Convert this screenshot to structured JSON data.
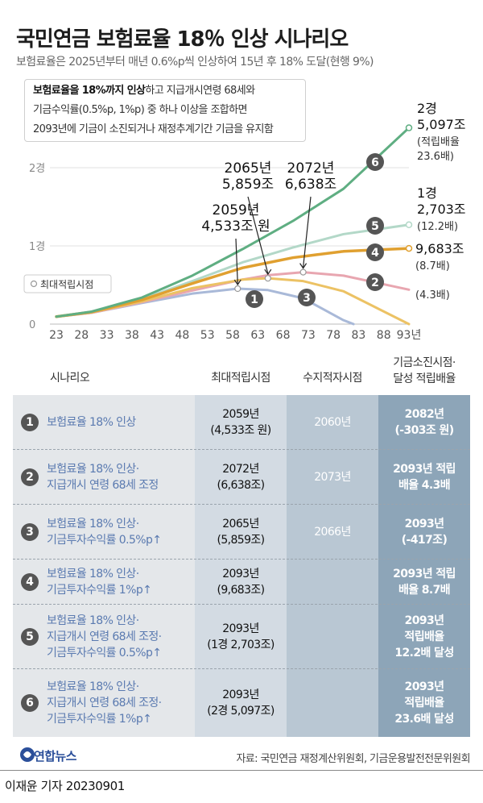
{
  "title": "국민연금 보험료율 18％ 인상 시나리오",
  "subtitle": "보험료율은 2025년부터 매년 0.6%p씩 인상하여 15년 후 18% 도달(현행 9%)",
  "note": {
    "bold": "보험료율을 18%까지 인상",
    "line1_rest": "하고 지급개시연령 68세와",
    "line2": "기금수익률(0.5%p, 1%p) 중 하나 이상을 조합하면",
    "line3": "2093년에 기금이 소진되거나 재정추계기간 기금을 유지함"
  },
  "chart_data": {
    "type": "line",
    "x_ticks": [
      "23",
      "28",
      "33",
      "38",
      "43",
      "48",
      "53",
      "58",
      "63",
      "68",
      "73",
      "78",
      "83",
      "88",
      "93년"
    ],
    "x_range": [
      2023,
      2093
    ],
    "y_ticks": [
      "0",
      "1경",
      "2경"
    ],
    "y_range_jo": [
      0,
      24000
    ],
    "legend_label": "최대적립시점",
    "series": [
      {
        "id": "1",
        "color": "#a9b9d8",
        "x": [
          2023,
          2030,
          2040,
          2050,
          2059,
          2065,
          2072,
          2080,
          2082
        ],
        "y": [
          950,
          1450,
          2700,
          3900,
          4533,
          4350,
          3300,
          500,
          0
        ]
      },
      {
        "id": "2",
        "color": "#e8a6b0",
        "x": [
          2023,
          2030,
          2040,
          2050,
          2060,
          2065,
          2072,
          2080,
          2093
        ],
        "y": [
          950,
          1450,
          2800,
          4300,
          5700,
          6250,
          6638,
          6200,
          4400
        ]
      },
      {
        "id": "3",
        "color": "#ecc264",
        "x": [
          2023,
          2030,
          2040,
          2050,
          2060,
          2065,
          2072,
          2080,
          2093
        ],
        "y": [
          950,
          1500,
          2900,
          4600,
          5700,
          5859,
          5500,
          4200,
          0
        ]
      },
      {
        "id": "4",
        "color": "#e0a030",
        "x": [
          2023,
          2030,
          2040,
          2050,
          2060,
          2070,
          2080,
          2093
        ],
        "y": [
          950,
          1550,
          3100,
          5200,
          7200,
          8500,
          9300,
          9683
        ]
      },
      {
        "id": "5",
        "color": "#b3d8c8",
        "x": [
          2023,
          2030,
          2040,
          2050,
          2060,
          2070,
          2080,
          2093
        ],
        "y": [
          950,
          1550,
          3200,
          5500,
          7900,
          9800,
          11500,
          12703
        ]
      },
      {
        "id": "6",
        "color": "#5fae82",
        "x": [
          2023,
          2030,
          2040,
          2050,
          2060,
          2070,
          2080,
          2093
        ],
        "y": [
          950,
          1600,
          3400,
          6200,
          9600,
          13200,
          17300,
          25097
        ]
      }
    ],
    "peaks": [
      {
        "id": "1",
        "x": 2059,
        "y": 4533,
        "label": [
          "2059년",
          "4,533조 원"
        ]
      },
      {
        "id": "3",
        "x": 2065,
        "y": 5859,
        "label": [
          "2065년",
          "5,859조"
        ]
      },
      {
        "id": "2",
        "x": 2072,
        "y": 6638,
        "label": [
          "2072년",
          "6,638조"
        ]
      }
    ],
    "end_labels": [
      {
        "id": "6",
        "lines": [
          "2경",
          "5,097조"
        ],
        "sub": [
          "(적립배율",
          "23.6배)"
        ]
      },
      {
        "id": "5",
        "lines": [
          "1경",
          "2,703조"
        ],
        "sub": [
          "(12.2배)"
        ]
      },
      {
        "id": "4",
        "lines": [
          "9,683조"
        ],
        "sub": [
          "(8.7배)"
        ]
      },
      {
        "id": "2",
        "lines": [],
        "sub": [
          "(4.3배)"
        ]
      }
    ]
  },
  "table": {
    "headers": [
      "시나리오",
      "최대적립시점",
      "수지적자시점",
      "기금소진시점·",
      "달성 적립배율"
    ],
    "rows": [
      {
        "num": "1",
        "scenario": [
          "보험료율 18% 인상"
        ],
        "peak": [
          "2059년",
          "(4,533조 원)"
        ],
        "deficit": "2060년",
        "result": [
          "2082년",
          "(-303조 원)"
        ]
      },
      {
        "num": "2",
        "scenario": [
          "보험료율 18% 인상·",
          "지급개시 연령 68세 조정"
        ],
        "peak": [
          "2072년",
          "(6,638조)"
        ],
        "deficit": "2073년",
        "result": [
          "2093년 적립",
          "배율 4.3배"
        ]
      },
      {
        "num": "3",
        "scenario": [
          "보험료율 18% 인상·",
          "기금투자수익률 0.5%p↑"
        ],
        "peak": [
          "2065년",
          "(5,859조)"
        ],
        "deficit": "2066년",
        "result": [
          "2093년",
          "(-417조)"
        ]
      },
      {
        "num": "4",
        "scenario": [
          "보험료율 18% 인상·",
          "기금투자수익률 1%p↑"
        ],
        "peak": [
          "2093년",
          "(9,683조)"
        ],
        "deficit": "",
        "result": [
          "2093년 적립",
          "배율 8.7배"
        ]
      },
      {
        "num": "5",
        "scenario": [
          "보험료율 18% 인상·",
          "지급개시 연령 68세 조정·",
          "기금투자수익률 0.5%p↑"
        ],
        "peak": [
          "2093년",
          "(1경 2,703조)"
        ],
        "deficit": "",
        "result": [
          "2093년",
          "적립배율",
          "12.2배 달성"
        ]
      },
      {
        "num": "6",
        "scenario": [
          "보험료율 18% 인상·",
          "지급개시 연령 68세 조정·",
          "기금투자수익률 1%p↑"
        ],
        "peak": [
          "2093년",
          "(2경 5,097조)"
        ],
        "deficit": "",
        "result": [
          "2093년",
          "적립배율",
          "23.6배 달성"
        ]
      }
    ]
  },
  "logo_text": "연합뉴스",
  "source": "자료: 국민연금 재정계산위원회, 기금운용발전전문위원회",
  "byline": "이재윤 기자  20230901"
}
